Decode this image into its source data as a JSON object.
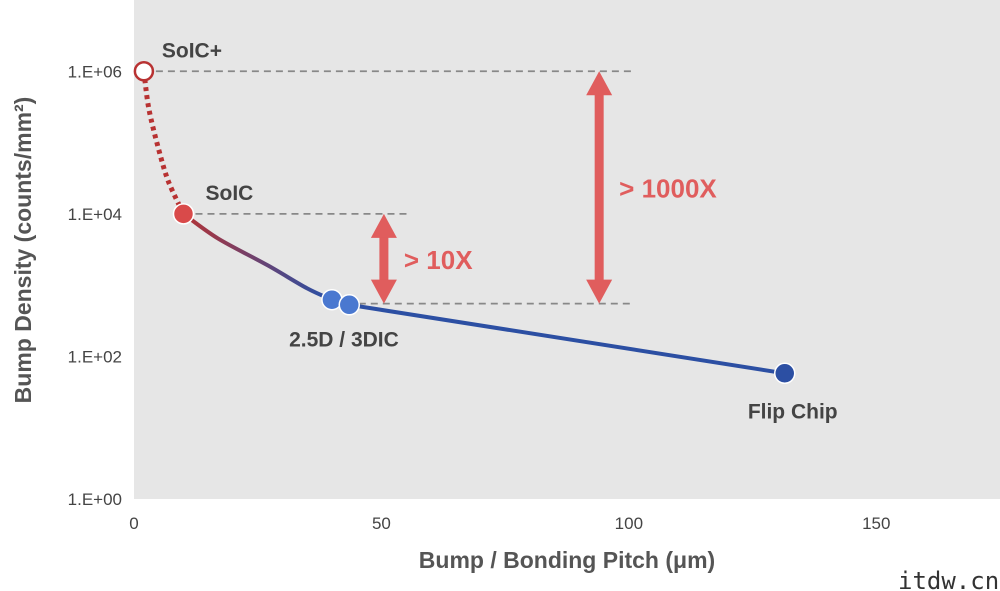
{
  "chart_data": {
    "type": "line",
    "xlabel": "Bump / Bonding Pitch (μm)",
    "ylabel": "Bump Density (counts/mm²)",
    "xlim": [
      0,
      175
    ],
    "ylim": [
      1,
      10000000
    ],
    "yscale": "log",
    "xticks": [
      0,
      50,
      100,
      150
    ],
    "xtick_labels": [
      "0",
      "50",
      "100",
      "150"
    ],
    "yticks": [
      1,
      100,
      10000,
      1000000
    ],
    "ytick_labels": [
      "1.E+00",
      "1.E+02",
      "1.E+04",
      "1.E+06"
    ],
    "grid": false,
    "curve": [
      {
        "x": 2,
        "y": 1000000
      },
      {
        "x": 3,
        "y": 300000
      },
      {
        "x": 5,
        "y": 80000
      },
      {
        "x": 7,
        "y": 28000
      },
      {
        "x": 10,
        "y": 10000
      },
      {
        "x": 17,
        "y": 4500
      },
      {
        "x": 27,
        "y": 1900
      },
      {
        "x": 35,
        "y": 900
      },
      {
        "x": 40,
        "y": 625
      },
      {
        "x": 43.5,
        "y": 530
      },
      {
        "x": 131.5,
        "y": 58
      }
    ],
    "points": [
      {
        "x": 2,
        "y": 1000000,
        "label": "SoIC+",
        "style": "open",
        "color": "#b83232"
      },
      {
        "x": 10,
        "y": 10000,
        "label": "SoIC",
        "style": "filled",
        "color": "#d94a4a"
      },
      {
        "x": 40,
        "y": 625,
        "label": "2.5D / 3DIC",
        "style": "filled",
        "color": "#4a78d0"
      },
      {
        "x": 43.5,
        "y": 530,
        "label": "",
        "style": "filled",
        "color": "#4a78d0"
      },
      {
        "x": 131.5,
        "y": 58,
        "label": "Flip Chip",
        "style": "filled",
        "color": "#2c4fa3"
      }
    ],
    "reference_lines": [
      {
        "y": 1000000,
        "x_from": 2,
        "x_to": 101
      },
      {
        "y": 10000,
        "x_from": 10,
        "x_to": 56
      },
      {
        "y": 550,
        "x_from": 43,
        "x_to": 101
      }
    ],
    "annotations": [
      {
        "text": "> 10X",
        "x": 50.5,
        "y_from": 10000,
        "y_to": 550,
        "color": "#e05d5d"
      },
      {
        "text": "> 1000X",
        "x": 94,
        "y_from": 1000000,
        "y_to": 550,
        "color": "#e05d5d"
      }
    ],
    "colors": {
      "background": "#e6e6e6",
      "line_blue": "#2c4fa3",
      "line_red": "#b83232",
      "arrow": "#e05d5d",
      "dashed": "#888888"
    }
  },
  "watermark": "itdw.cn"
}
